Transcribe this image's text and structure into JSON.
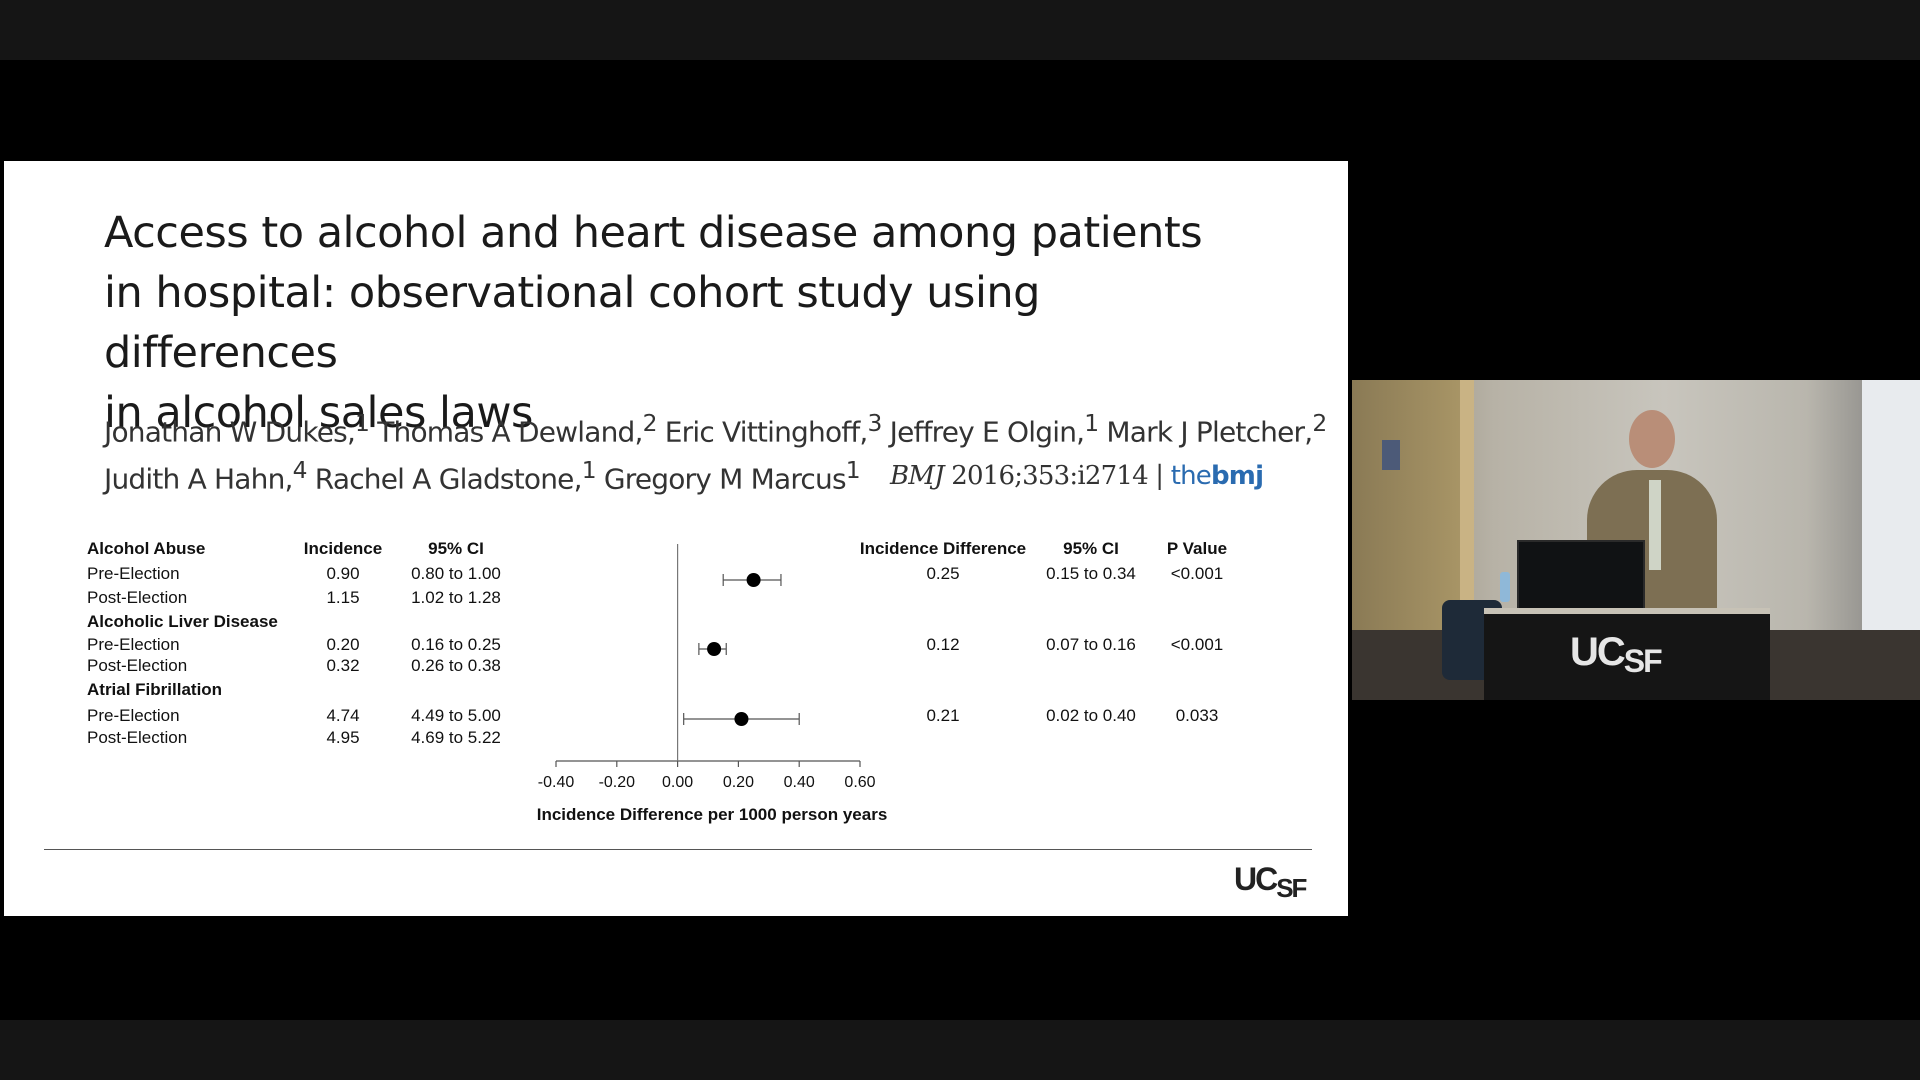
{
  "slide": {
    "title_lines": [
      "Access to alcohol and heart disease among patients",
      "in hospital: observational cohort study using differences",
      "in alcohol sales laws"
    ],
    "authors": [
      {
        "name": "Jonathan W Dukes,",
        "sup": "1"
      },
      {
        "name": " Thomas A Dewland,",
        "sup": "2"
      },
      {
        "name": " Eric Vittinghoff,",
        "sup": "3"
      },
      {
        "name": " Jeffrey E Olgin,",
        "sup": "1"
      },
      {
        "name": " Mark J Pletcher,",
        "sup": "2"
      },
      {
        "name": "Judith A Hahn,",
        "sup": "4"
      },
      {
        "name": " Rachel A Gladstone,",
        "sup": "1"
      },
      {
        "name": " Gregory M Marcus",
        "sup": "1"
      }
    ],
    "citation": {
      "journal": "BMJ",
      "ref": " 2016;353:i2714 | ",
      "brand_the": "the",
      "brand_bmj": "bmj"
    },
    "table_headers": {
      "incidence": "Incidence",
      "ci": "95% CI",
      "diff": "Incidence Difference",
      "diff_ci": "95% CI",
      "p": "P Value"
    },
    "groups": [
      {
        "label": "Alcohol Abuse",
        "rows": [
          {
            "label": "Pre-Election",
            "incidence": "0.90",
            "ci": "0.80 to 1.00"
          },
          {
            "label": "Post-Election",
            "incidence": "1.15",
            "ci": "1.02 to 1.28"
          }
        ],
        "diff": "0.25",
        "diff_ci": "0.15 to 0.34",
        "p": "<0.001"
      },
      {
        "label": "Alcoholic Liver Disease",
        "rows": [
          {
            "label": "Pre-Election",
            "incidence": "0.20",
            "ci": "0.16 to 0.25"
          },
          {
            "label": "Post-Election",
            "incidence": "0.32",
            "ci": "0.26 to 0.38"
          }
        ],
        "diff": "0.12",
        "diff_ci": "0.07 to 0.16",
        "p": "<0.001"
      },
      {
        "label": "Atrial Fibrillation",
        "rows": [
          {
            "label": "Pre-Election",
            "incidence": "4.74",
            "ci": "4.49 to 5.00"
          },
          {
            "label": "Post-Election",
            "incidence": "4.95",
            "ci": "4.69 to 5.22"
          }
        ],
        "diff": "0.21",
        "diff_ci": "0.02 to 0.40",
        "p": "0.033"
      }
    ],
    "logo_uc": "UC",
    "logo_sf": "SF"
  },
  "chart_data": {
    "type": "scatter",
    "categories": [
      "Alcohol Abuse",
      "Alcoholic Liver Disease",
      "Atrial Fibrillation"
    ],
    "values": [
      0.25,
      0.12,
      0.21
    ],
    "ci_low": [
      0.15,
      0.07,
      0.02
    ],
    "ci_high": [
      0.34,
      0.16,
      0.4
    ],
    "xlabel": "Incidence Difference per 1000 person years",
    "xlim": [
      -0.4,
      0.6
    ],
    "xticks": [
      "-0.40",
      "-0.20",
      "0.00",
      "0.20",
      "0.40",
      "0.60"
    ],
    "reference_line": 0
  },
  "video": {
    "podium_uc": "UC",
    "podium_sf": "SF"
  }
}
